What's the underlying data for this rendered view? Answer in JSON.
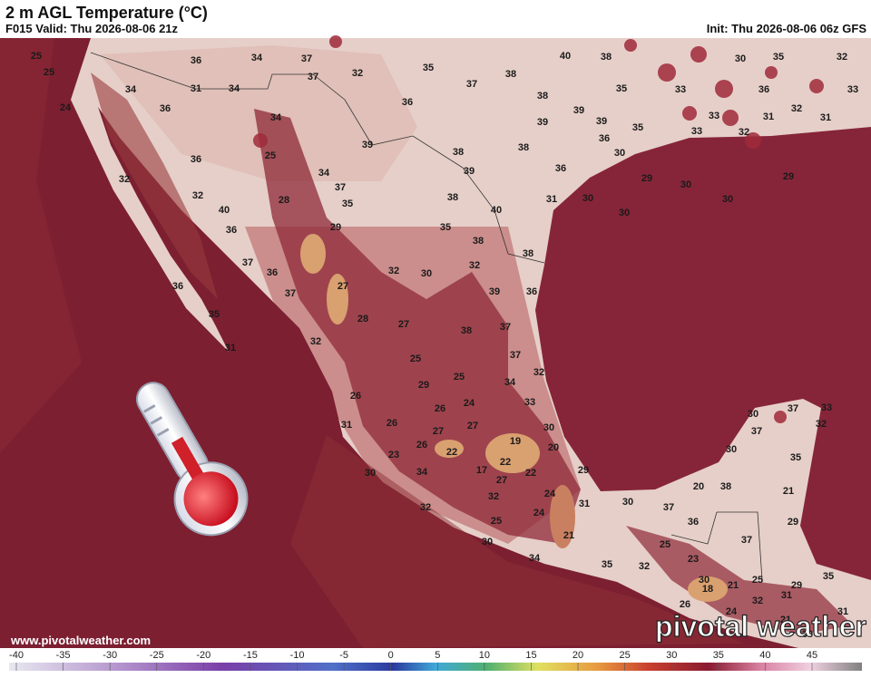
{
  "header": {
    "title": "2 m AGL Temperature (°C)",
    "valid": "F015 Valid: Thu 2026-08-06 21z",
    "init": "Init: Thu 2026-08-06 06z GFS"
  },
  "footer": {
    "url": "www.pivotalweather.com",
    "logo": "pivotal weather"
  },
  "colorbar": {
    "ticks": [
      -40,
      -35,
      -30,
      -25,
      -20,
      -15,
      -10,
      -5,
      0,
      5,
      10,
      15,
      20,
      25,
      30,
      35,
      40,
      45
    ]
  },
  "map_labels": [
    25,
    25,
    24,
    36,
    34,
    37,
    32,
    35,
    38,
    40,
    38,
    30,
    35,
    32,
    34,
    31,
    34,
    37,
    37,
    38,
    35,
    33,
    36,
    33,
    36,
    34,
    36,
    39,
    39,
    39,
    33,
    31,
    32,
    31,
    35,
    33,
    32,
    36,
    39,
    38,
    38,
    30,
    36,
    25,
    34,
    39,
    36,
    29,
    29,
    32,
    32,
    28,
    37,
    35,
    38,
    31,
    30,
    30,
    30,
    40,
    40,
    30,
    29,
    36,
    35,
    38,
    38,
    37,
    36,
    32,
    30,
    32,
    36,
    37,
    27,
    39,
    36,
    35,
    28,
    27,
    38,
    37,
    32,
    31,
    37,
    25,
    32,
    34,
    25,
    29,
    26,
    26,
    24,
    33,
    31,
    26,
    27,
    27,
    30,
    30,
    37,
    33,
    37,
    32,
    26,
    22,
    19,
    20,
    23,
    30,
    35,
    22,
    17,
    22,
    29,
    34,
    30,
    27,
    24,
    20,
    38,
    21,
    32,
    31,
    30,
    37,
    32,
    24,
    36,
    29,
    25,
    21,
    37,
    25,
    23,
    30,
    34,
    35,
    32,
    30,
    25,
    29,
    35,
    18,
    21,
    26,
    32,
    24,
    31,
    21,
    30,
    31
  ]
}
